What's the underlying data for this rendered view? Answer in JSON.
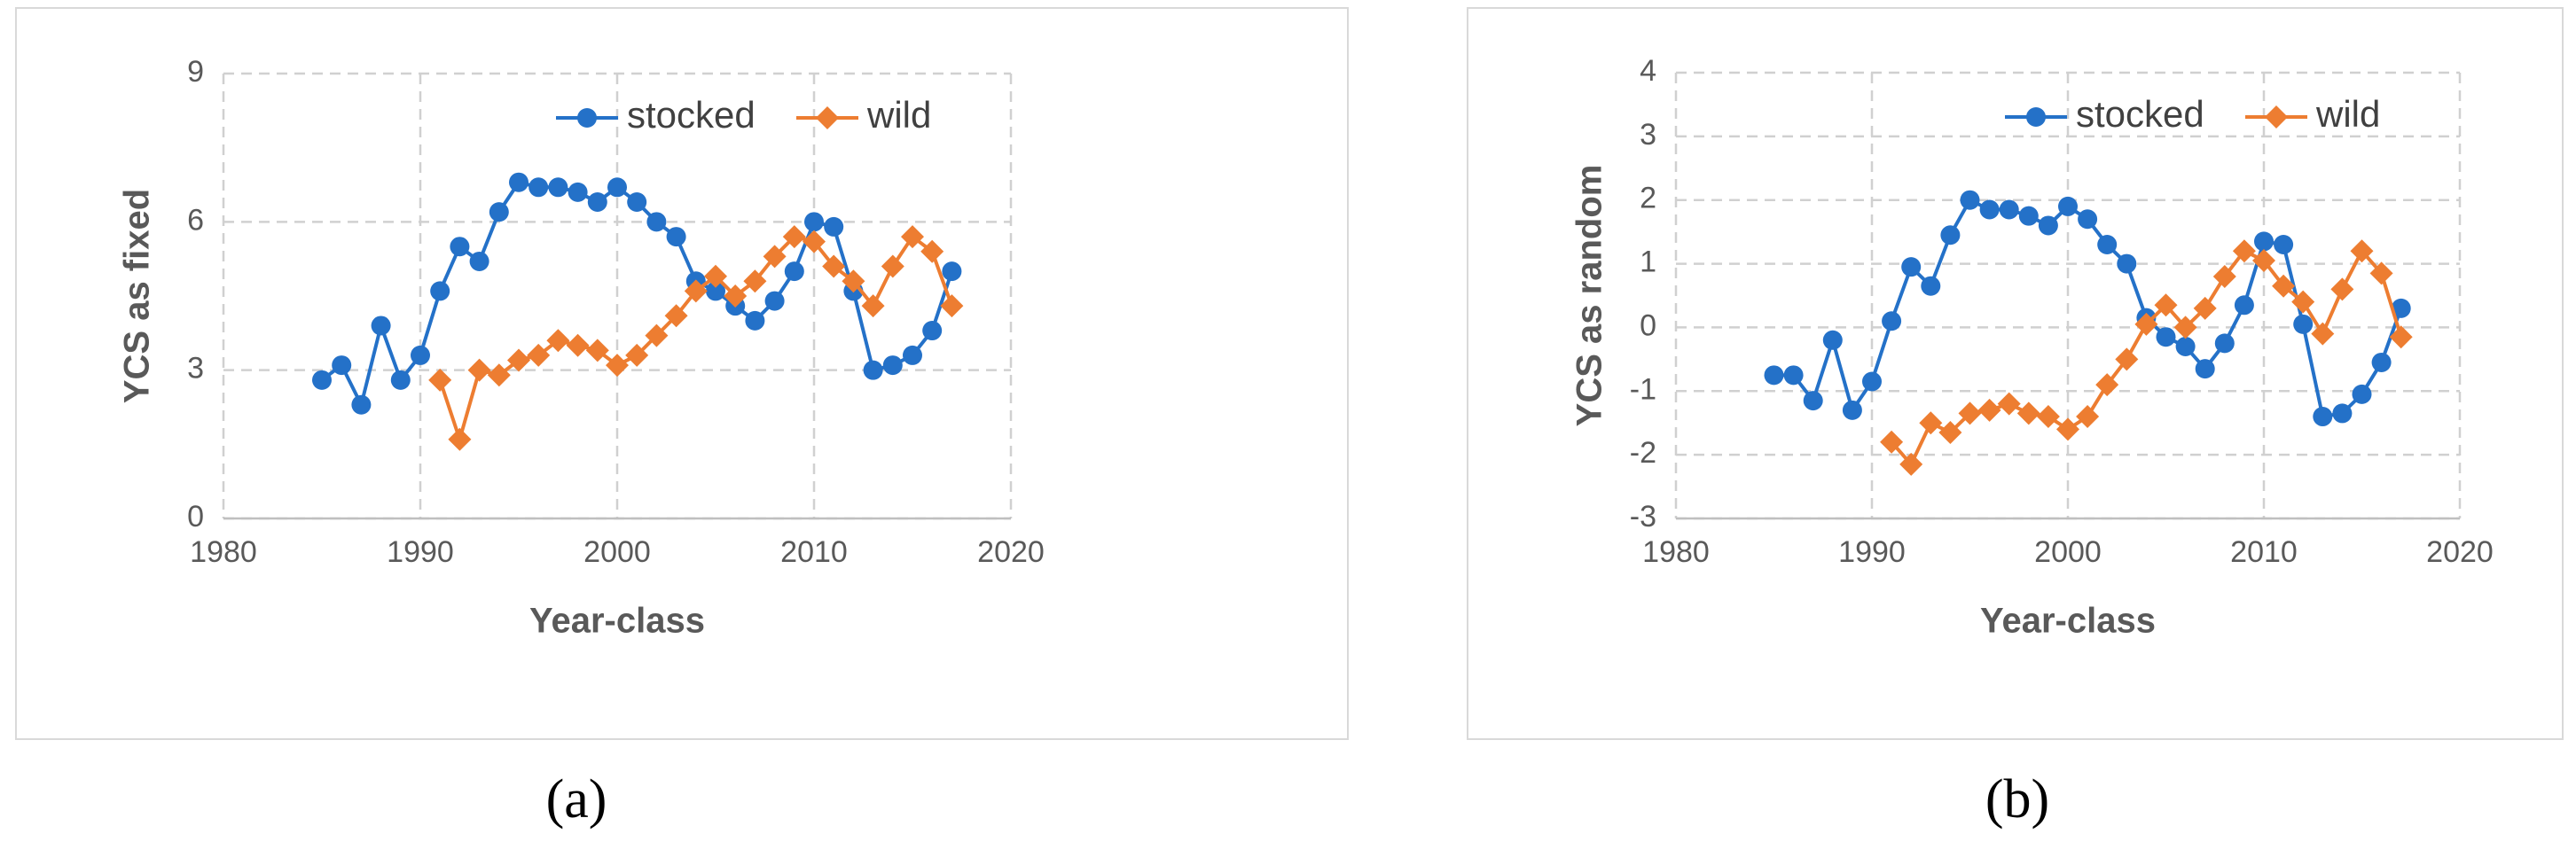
{
  "chart_data": [
    {
      "type": "line",
      "panel_label": "(a)",
      "x_label": "Year-class",
      "y_label": "YCS as fixed",
      "xlim": [
        1980,
        2020
      ],
      "xticks": [
        1980,
        1990,
        2000,
        2010,
        2020
      ],
      "ylim": [
        0,
        9
      ],
      "yticks": [
        0,
        3,
        6,
        9
      ],
      "grid": true,
      "legend": "top-right",
      "x": [
        1985,
        1986,
        1987,
        1988,
        1989,
        1990,
        1991,
        1992,
        1993,
        1994,
        1995,
        1996,
        1997,
        1998,
        1999,
        2000,
        2001,
        2002,
        2003,
        2004,
        2005,
        2006,
        2007,
        2008,
        2009,
        2010,
        2011,
        2012,
        2013,
        2014,
        2015,
        2016,
        2017
      ],
      "series": [
        {
          "name": "stocked",
          "color": "#2471c8",
          "marker": "circle",
          "values": [
            2.8,
            3.1,
            2.3,
            3.9,
            2.8,
            3.3,
            4.6,
            5.5,
            5.2,
            6.2,
            6.8,
            6.7,
            6.7,
            6.6,
            6.4,
            6.7,
            6.4,
            6.0,
            5.7,
            4.8,
            4.6,
            4.3,
            4.0,
            4.4,
            5.0,
            6.0,
            5.9,
            4.6,
            3.0,
            3.1,
            3.3,
            3.8,
            5.0
          ]
        },
        {
          "name": "wild",
          "color": "#ed7d31",
          "marker": "diamond",
          "values": [
            null,
            null,
            null,
            null,
            null,
            null,
            2.8,
            1.6,
            3.0,
            2.9,
            3.2,
            3.3,
            3.6,
            3.5,
            3.4,
            3.1,
            3.3,
            3.7,
            4.1,
            4.6,
            4.9,
            4.5,
            4.8,
            5.3,
            5.7,
            5.6,
            5.1,
            4.8,
            4.3,
            5.1,
            5.7,
            5.4,
            4.3
          ]
        }
      ]
    },
    {
      "type": "line",
      "panel_label": "(b)",
      "x_label": "Year-class",
      "y_label": "YCS as random",
      "xlim": [
        1980,
        2020
      ],
      "xticks": [
        1980,
        1990,
        2000,
        2010,
        2020
      ],
      "ylim": [
        -3,
        4
      ],
      "yticks": [
        -3,
        -2,
        -1,
        0,
        1,
        2,
        3,
        4
      ],
      "grid": true,
      "legend": "top-right",
      "x": [
        1985,
        1986,
        1987,
        1988,
        1989,
        1990,
        1991,
        1992,
        1993,
        1994,
        1995,
        1996,
        1997,
        1998,
        1999,
        2000,
        2001,
        2002,
        2003,
        2004,
        2005,
        2006,
        2007,
        2008,
        2009,
        2010,
        2011,
        2012,
        2013,
        2014,
        2015,
        2016,
        2017
      ],
      "series": [
        {
          "name": "stocked",
          "color": "#2471c8",
          "marker": "circle",
          "values": [
            -0.75,
            -0.75,
            -1.15,
            -0.2,
            -1.3,
            -0.85,
            0.1,
            0.95,
            0.65,
            1.45,
            2.0,
            1.85,
            1.85,
            1.75,
            1.6,
            1.9,
            1.7,
            1.3,
            1.0,
            0.15,
            -0.15,
            -0.3,
            -0.65,
            -0.25,
            0.35,
            1.35,
            1.3,
            0.05,
            -1.4,
            -1.35,
            -1.05,
            -0.55,
            0.3
          ]
        },
        {
          "name": "wild",
          "color": "#ed7d31",
          "marker": "diamond",
          "values": [
            null,
            null,
            null,
            null,
            null,
            null,
            -1.8,
            -2.15,
            -1.5,
            -1.65,
            -1.35,
            -1.3,
            -1.2,
            -1.35,
            -1.4,
            -1.6,
            -1.4,
            -0.9,
            -0.5,
            0.05,
            0.35,
            0.0,
            0.3,
            0.8,
            1.2,
            1.05,
            0.65,
            0.4,
            -0.1,
            0.6,
            1.2,
            0.85,
            -0.15
          ]
        }
      ]
    }
  ]
}
